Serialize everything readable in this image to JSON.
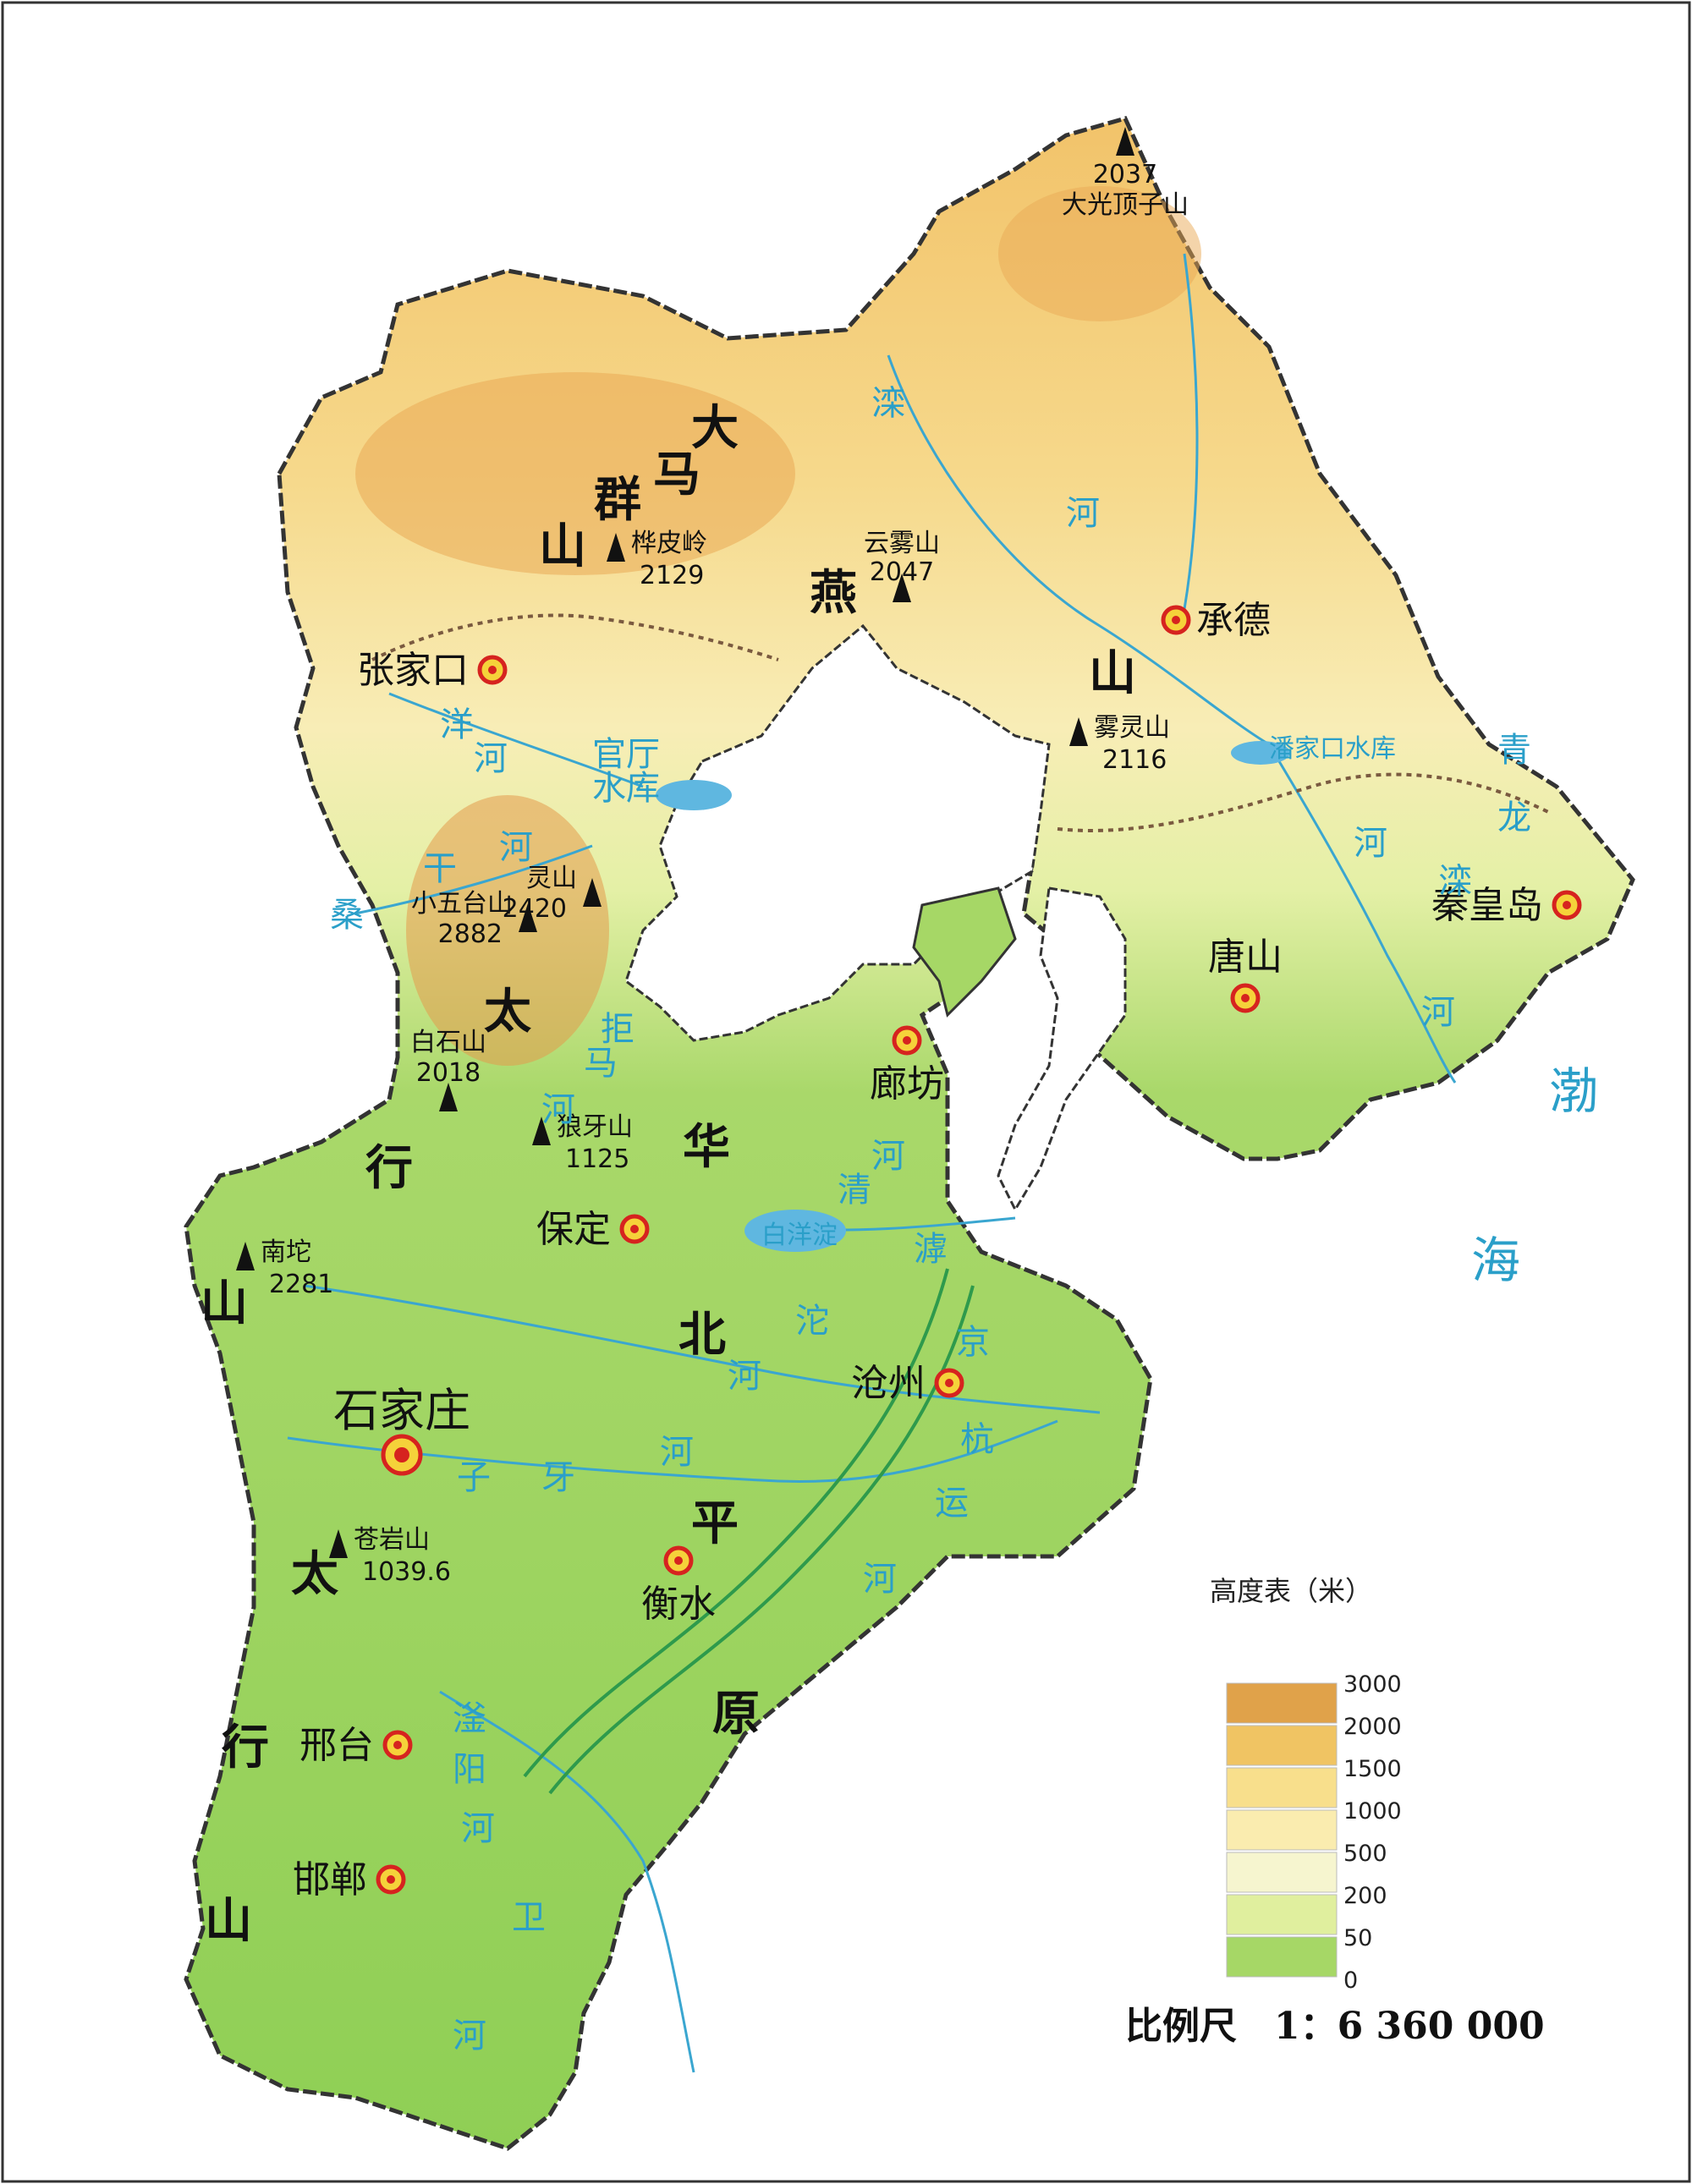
{
  "cities": [
    {
      "id": "zhangjiakou",
      "name": "张家口"
    },
    {
      "id": "chengde",
      "name": "承德"
    },
    {
      "id": "qinhuangdao",
      "name": "秦皇岛"
    },
    {
      "id": "tangshan",
      "name": "唐山"
    },
    {
      "id": "langfang",
      "name": "廊坊"
    },
    {
      "id": "baoding",
      "name": "保定"
    },
    {
      "id": "shijiazhuang",
      "name": "石家庄"
    },
    {
      "id": "cangzhou",
      "name": "沧州"
    },
    {
      "id": "hengshui",
      "name": "衡水"
    },
    {
      "id": "xingtai",
      "name": "邢台"
    },
    {
      "id": "handan",
      "name": "邯郸"
    }
  ],
  "peaks": [
    {
      "id": "daguangding",
      "name": "大光顶子山",
      "elev": "2037"
    },
    {
      "id": "huapiling",
      "name": "桦皮岭",
      "elev": "2129"
    },
    {
      "id": "yunwushan",
      "name": "云雾山",
      "elev": "2047"
    },
    {
      "id": "wulingshan",
      "name": "雾灵山",
      "elev": "2116"
    },
    {
      "id": "lingshan",
      "name": "灵山",
      "elev": "2420"
    },
    {
      "id": "xiaowutaishan",
      "name": "小五台山",
      "elev": "2882"
    },
    {
      "id": "baishishan",
      "name": "白石山",
      "elev": "2018"
    },
    {
      "id": "langyashan",
      "name": "狼牙山",
      "elev": "1125"
    },
    {
      "id": "nantuo",
      "name": "南坨",
      "elev": "2281"
    },
    {
      "id": "cangyanshan",
      "name": "苍岩山",
      "elev": "1039.6"
    }
  ],
  "ranges": [
    "大",
    "马",
    "群",
    "山",
    "燕",
    "山",
    "太",
    "行",
    "山",
    "太",
    "行",
    "山",
    "华",
    "北",
    "平",
    "原"
  ],
  "waters": [
    "滦",
    "河",
    "洋",
    "河",
    "官厅",
    "水库",
    "桑",
    "干",
    "河",
    "拒",
    "马",
    "河",
    "清",
    "河",
    "白洋淀",
    "滹",
    "沱",
    "河",
    "子",
    "牙",
    "河",
    "京",
    "杭",
    "运",
    "河",
    "滏",
    "阳",
    "河",
    "卫",
    "河",
    "潘家口水库",
    "青",
    "龙",
    "河",
    "滦",
    "河"
  ],
  "sea": [
    "渤",
    "海"
  ],
  "legend": {
    "title": "高度表（米）",
    "levels": [
      "3000",
      "2000",
      "1500",
      "1000",
      "500",
      "200",
      "50",
      "0"
    ],
    "colors": [
      "#e0a24a",
      "#f0c463",
      "#f8df8c",
      "#faecaf",
      "#f6f5cf",
      "#e0ef9e",
      "#a6d766"
    ]
  },
  "scale_text": "比例尺　1：6 360 000"
}
